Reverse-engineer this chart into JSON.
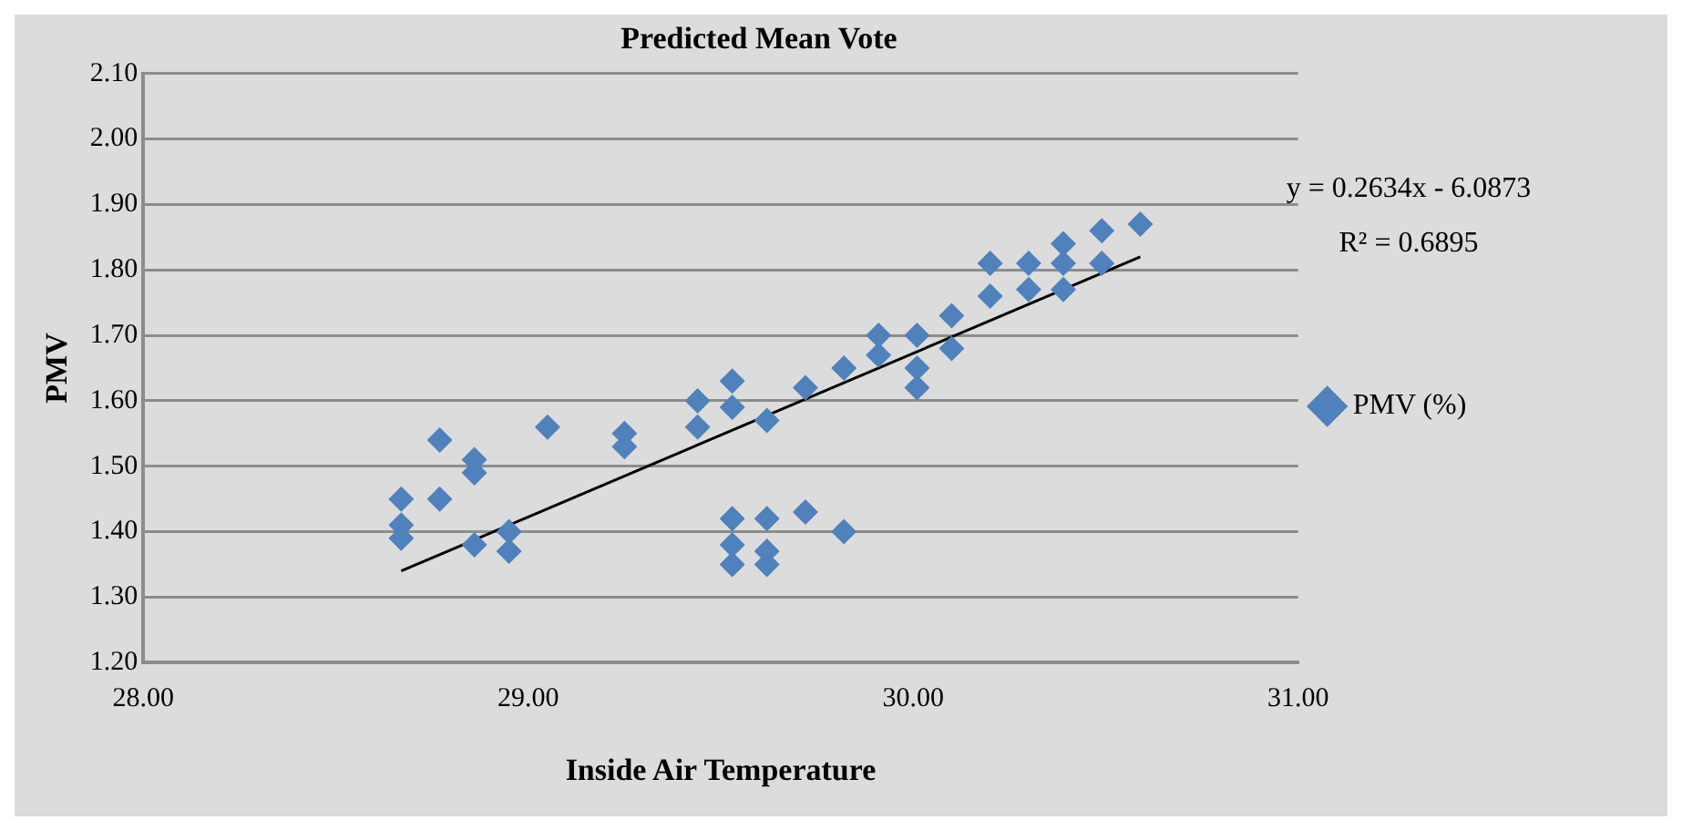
{
  "chart_data": {
    "type": "scatter",
    "title": "Predicted Mean Vote",
    "xlabel": "Inside Air Temperature",
    "ylabel": "PMV",
    "xlim": [
      28,
      31
    ],
    "xticks": [
      {
        "value": 28,
        "label": "28.00"
      },
      {
        "value": 29,
        "label": "29.00"
      },
      {
        "value": 30,
        "label": "30.00"
      },
      {
        "value": 31,
        "label": "31.00"
      }
    ],
    "ylim": [
      1.2,
      2.1
    ],
    "yticks": [
      {
        "value": 1.2,
        "label": "1.20"
      },
      {
        "value": 1.3,
        "label": "1.30"
      },
      {
        "value": 1.4,
        "label": "1.40"
      },
      {
        "value": 1.5,
        "label": "1.50"
      },
      {
        "value": 1.6,
        "label": "1.60"
      },
      {
        "value": 1.7,
        "label": "1.70"
      },
      {
        "value": 1.8,
        "label": "1.80"
      },
      {
        "value": 1.9,
        "label": "1.90"
      },
      {
        "value": 2.0,
        "label": "2.00"
      },
      {
        "value": 2.1,
        "label": "2.10"
      }
    ],
    "grid": "y",
    "legend": "right",
    "marker": "diamond",
    "annotations": [
      "y = 0.2634x - 6.0873",
      "R² = 0.6895"
    ],
    "series": [
      {
        "name": "PMV (%)",
        "color": "#4f81bd",
        "x": [
          28.67,
          28.67,
          28.67,
          28.77,
          28.77,
          28.86,
          28.86,
          28.86,
          28.95,
          28.95,
          29.05,
          29.25,
          29.25,
          29.44,
          29.44,
          29.53,
          29.53,
          29.53,
          29.53,
          29.53,
          29.62,
          29.62,
          29.62,
          29.62,
          29.72,
          29.72,
          29.82,
          29.82,
          29.91,
          29.91,
          30.01,
          30.01,
          30.01,
          30.1,
          30.1,
          30.2,
          30.2,
          30.3,
          30.3,
          30.39,
          30.39,
          30.39,
          30.49,
          30.49,
          30.59
        ],
        "values": [
          1.45,
          1.41,
          1.39,
          1.54,
          1.45,
          1.51,
          1.49,
          1.38,
          1.4,
          1.37,
          1.56,
          1.55,
          1.53,
          1.6,
          1.56,
          1.63,
          1.59,
          1.42,
          1.38,
          1.35,
          1.42,
          1.37,
          1.35,
          1.57,
          1.43,
          1.62,
          1.4,
          1.65,
          1.7,
          1.67,
          1.7,
          1.65,
          1.62,
          1.68,
          1.73,
          1.81,
          1.76,
          1.81,
          1.77,
          1.84,
          1.77,
          1.81,
          1.86,
          1.81,
          1.87
        ]
      },
      {
        "type": "line",
        "color": "#000000",
        "x": [
          28.67,
          30.59
        ],
        "values": [
          1.34,
          1.82
        ],
        "marker": "none"
      }
    ]
  }
}
